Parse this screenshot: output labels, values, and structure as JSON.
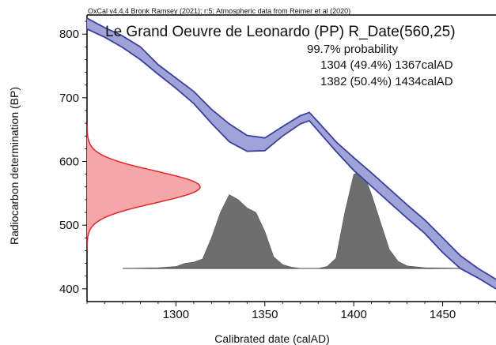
{
  "chart_data": {
    "type": "area",
    "header": "OxCal v4.4.4 Bronk Ramsey (2021); r:5; Atmospheric data from Reimer et al (2020)",
    "title": "Le Grand Oeuvre de Leonardo (PP) R_Date(560,25)",
    "annotation": {
      "probability_label": "99.7% probability",
      "ranges": [
        "1304 (49.4%) 1367calAD",
        "1382 (50.4%) 1434calAD"
      ]
    },
    "xlabel": "Calibrated date (calAD)",
    "ylabel": "Radiocarbon determination (BP)",
    "xlim": [
      1250,
      1480
    ],
    "ylim": [
      380,
      830
    ],
    "x_ticks": [
      1300,
      1350,
      1400,
      1450
    ],
    "y_ticks": [
      400,
      500,
      600,
      700,
      800
    ],
    "radiocarbon_date": {
      "mean": 560,
      "sigma": 25,
      "color": "#e8232a",
      "fill": "#f4a6a8"
    },
    "calibration_curve": {
      "color": "#3b3f9e",
      "fill": "#9fa3d8",
      "x": [
        1250,
        1260,
        1270,
        1280,
        1290,
        1300,
        1310,
        1320,
        1330,
        1340,
        1350,
        1360,
        1370,
        1375,
        1380,
        1390,
        1400,
        1410,
        1420,
        1430,
        1440,
        1450,
        1460,
        1470,
        1480
      ],
      "upper": [
        825,
        810,
        797,
        780,
        752,
        731,
        710,
        682,
        659,
        641,
        637,
        655,
        672,
        677,
        662,
        631,
        606,
        582,
        557,
        532,
        508,
        480,
        452,
        432,
        415
      ],
      "lower": [
        808,
        795,
        779,
        760,
        737,
        715,
        691,
        660,
        631,
        616,
        617,
        640,
        659,
        664,
        648,
        616,
        586,
        561,
        536,
        511,
        487,
        457,
        432,
        417,
        400
      ]
    },
    "calibrated_distribution": {
      "color": "#6e6e6e",
      "baseline_y": 432,
      "x": [
        1270,
        1290,
        1300,
        1305,
        1310,
        1315,
        1320,
        1325,
        1330,
        1335,
        1340,
        1345,
        1350,
        1355,
        1360,
        1365,
        1370,
        1380,
        1385,
        1390,
        1395,
        1400,
        1405,
        1410,
        1415,
        1420,
        1425,
        1430,
        1440,
        1465
      ],
      "y": [
        432,
        433,
        435,
        440,
        442,
        447,
        480,
        520,
        548,
        540,
        527,
        520,
        490,
        450,
        438,
        434,
        432,
        432,
        435,
        448,
        520,
        580,
        585,
        548,
        505,
        462,
        443,
        436,
        433,
        432
      ]
    },
    "range_brackets": [
      {
        "from": 1304,
        "to": 1367
      },
      {
        "from": 1382,
        "to": 1434
      }
    ],
    "bracket_y": 372
  }
}
